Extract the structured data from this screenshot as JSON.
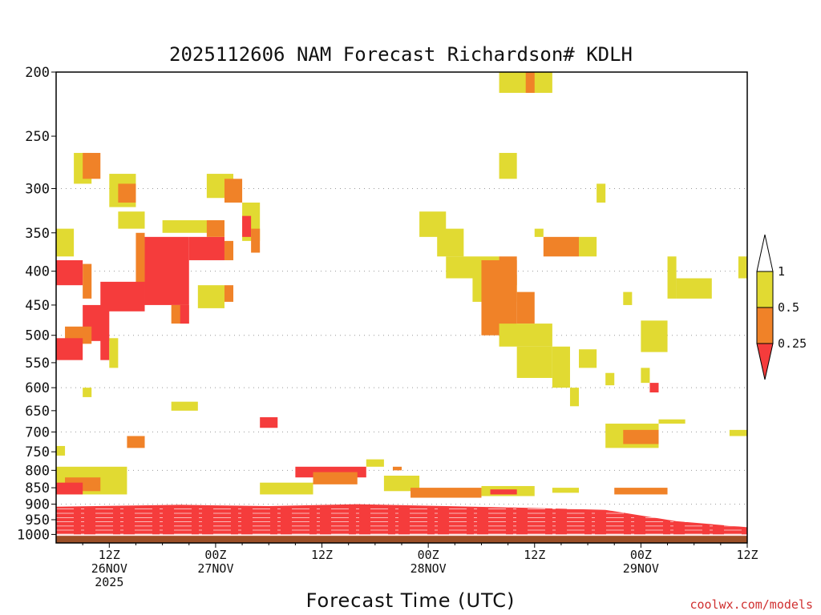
{
  "chart_data": {
    "type": "heatmap",
    "title": "2025112606 NAM Forecast Richardson# KDLH",
    "xlabel": "Forecast Time (UTC)",
    "ylabel": "Pressure (hPa)",
    "ylim": [
      1030,
      200
    ],
    "xlim_hours": [
      6,
      84
    ],
    "y_ticks": [
      200,
      250,
      300,
      350,
      400,
      450,
      500,
      550,
      600,
      650,
      700,
      750,
      800,
      850,
      900,
      950,
      1000
    ],
    "x_ticks": [
      {
        "hour": 12,
        "lines": [
          "12Z",
          "26NOV",
          "2025"
        ]
      },
      {
        "hour": 24,
        "lines": [
          "00Z",
          "27NOV"
        ]
      },
      {
        "hour": 36,
        "lines": [
          "12Z"
        ]
      },
      {
        "hour": 48,
        "lines": [
          "00Z",
          "28NOV"
        ]
      },
      {
        "hour": 60,
        "lines": [
          "12Z"
        ]
      },
      {
        "hour": 72,
        "lines": [
          "00Z",
          "29NOV"
        ]
      },
      {
        "hour": 84,
        "lines": [
          "12Z"
        ]
      }
    ],
    "legend": {
      "labels": [
        "1",
        "0.5",
        "0.25"
      ],
      "bins": [
        {
          "range": "0.5-1",
          "color": "#e1da32"
        },
        {
          "range": "0.25-0.5",
          "color": "#f08228"
        },
        {
          "range": "<0.25",
          "color": "#f53c3c"
        }
      ]
    },
    "colors": {
      "high": "#e1da32",
      "mid": "#f08228",
      "low": "#f53c3c",
      "ground": "#9b4f27"
    },
    "ground_level_hpa": 1005,
    "surface_layer_top_hpa": [
      {
        "hour": 6,
        "p": 908
      },
      {
        "hour": 20,
        "p": 902
      },
      {
        "hour": 30,
        "p": 906
      },
      {
        "hour": 40,
        "p": 900
      },
      {
        "hour": 50,
        "p": 906
      },
      {
        "hour": 60,
        "p": 912
      },
      {
        "hour": 68,
        "p": 918
      },
      {
        "hour": 76,
        "p": 955
      },
      {
        "hour": 84,
        "p": 975
      },
      {
        "hour": 90,
        "p": 935
      }
    ],
    "regions": [
      {
        "h0": 8,
        "h1": 10,
        "p0": 265,
        "p1": 295,
        "cat": "high"
      },
      {
        "h0": 9,
        "h1": 11,
        "p0": 265,
        "p1": 290,
        "cat": "mid"
      },
      {
        "h0": 12,
        "h1": 15,
        "p0": 285,
        "p1": 320,
        "cat": "high"
      },
      {
        "h0": 13,
        "h1": 15,
        "p0": 295,
        "p1": 315,
        "cat": "mid"
      },
      {
        "h0": 13,
        "h1": 16,
        "p0": 325,
        "p1": 345,
        "cat": "high"
      },
      {
        "h0": 16,
        "h1": 21,
        "p0": 355,
        "p1": 450,
        "cat": "low"
      },
      {
        "h0": 21,
        "h1": 25,
        "p0": 355,
        "p1": 385,
        "cat": "low"
      },
      {
        "h0": 25,
        "h1": 26,
        "p0": 360,
        "p1": 385,
        "cat": "mid"
      },
      {
        "h0": 15,
        "h1": 16,
        "p0": 350,
        "p1": 420,
        "cat": "mid"
      },
      {
        "h0": 11,
        "h1": 16,
        "p0": 415,
        "p1": 460,
        "cat": "low"
      },
      {
        "h0": 9,
        "h1": 12,
        "p0": 450,
        "p1": 510,
        "cat": "low"
      },
      {
        "h0": 7,
        "h1": 10,
        "p0": 485,
        "p1": 515,
        "cat": "mid"
      },
      {
        "h0": 6,
        "h1": 9,
        "p0": 505,
        "p1": 545,
        "cat": "low"
      },
      {
        "h0": 6,
        "h1": 9,
        "p0": 385,
        "p1": 420,
        "cat": "low"
      },
      {
        "h0": 9,
        "h1": 10,
        "p0": 390,
        "p1": 440,
        "cat": "mid"
      },
      {
        "h0": 11,
        "h1": 12,
        "p0": 505,
        "p1": 545,
        "cat": "low"
      },
      {
        "h0": 19,
        "h1": 21,
        "p0": 450,
        "p1": 480,
        "cat": "mid"
      },
      {
        "h0": 20,
        "h1": 21,
        "p0": 450,
        "p1": 480,
        "cat": "low"
      },
      {
        "h0": 18,
        "h1": 25,
        "p0": 335,
        "p1": 350,
        "cat": "high"
      },
      {
        "h0": 23,
        "h1": 25,
        "p0": 335,
        "p1": 355,
        "cat": "mid"
      },
      {
        "h0": 23,
        "h1": 26,
        "p0": 285,
        "p1": 310,
        "cat": "high"
      },
      {
        "h0": 25,
        "h1": 27,
        "p0": 290,
        "p1": 315,
        "cat": "mid"
      },
      {
        "h0": 27,
        "h1": 29,
        "p0": 315,
        "p1": 360,
        "cat": "high"
      },
      {
        "h0": 27,
        "h1": 28,
        "p0": 330,
        "p1": 355,
        "cat": "low"
      },
      {
        "h0": 28,
        "h1": 29,
        "p0": 345,
        "p1": 375,
        "cat": "mid"
      },
      {
        "h0": 22,
        "h1": 25,
        "p0": 420,
        "p1": 455,
        "cat": "high"
      },
      {
        "h0": 25,
        "h1": 26,
        "p0": 420,
        "p1": 445,
        "cat": "mid"
      },
      {
        "h0": 6,
        "h1": 8,
        "p0": 345,
        "p1": 380,
        "cat": "high"
      },
      {
        "h0": 12,
        "h1": 13,
        "p0": 505,
        "p1": 560,
        "cat": "high"
      },
      {
        "h0": 9,
        "h1": 10,
        "p0": 600,
        "p1": 620,
        "cat": "high"
      },
      {
        "h0": 19,
        "h1": 22,
        "p0": 630,
        "p1": 650,
        "cat": "high"
      },
      {
        "h0": 29,
        "h1": 31,
        "p0": 665,
        "p1": 690,
        "cat": "low"
      },
      {
        "h0": 14,
        "h1": 16,
        "p0": 710,
        "p1": 740,
        "cat": "mid"
      },
      {
        "h0": 6,
        "h1": 7,
        "p0": 735,
        "p1": 760,
        "cat": "high"
      },
      {
        "h0": 6,
        "h1": 14,
        "p0": 790,
        "p1": 870,
        "cat": "high"
      },
      {
        "h0": 7,
        "h1": 11,
        "p0": 820,
        "p1": 860,
        "cat": "mid"
      },
      {
        "h0": 6,
        "h1": 9,
        "p0": 835,
        "p1": 870,
        "cat": "low"
      },
      {
        "h0": 33,
        "h1": 41,
        "p0": 790,
        "p1": 820,
        "cat": "low"
      },
      {
        "h0": 35,
        "h1": 40,
        "p0": 805,
        "p1": 840,
        "cat": "mid"
      },
      {
        "h0": 29,
        "h1": 35,
        "p0": 835,
        "p1": 870,
        "cat": "high"
      },
      {
        "h0": 41,
        "h1": 43,
        "p0": 770,
        "p1": 790,
        "cat": "high"
      },
      {
        "h0": 43,
        "h1": 47,
        "p0": 815,
        "p1": 860,
        "cat": "high"
      },
      {
        "h0": 46,
        "h1": 54,
        "p0": 850,
        "p1": 880,
        "cat": "mid"
      },
      {
        "h0": 54,
        "h1": 60,
        "p0": 845,
        "p1": 875,
        "cat": "high"
      },
      {
        "h0": 55,
        "h1": 58,
        "p0": 855,
        "p1": 870,
        "cat": "low"
      },
      {
        "h0": 62,
        "h1": 65,
        "p0": 850,
        "p1": 865,
        "cat": "high"
      },
      {
        "h0": 69,
        "h1": 75,
        "p0": 850,
        "p1": 870,
        "cat": "mid"
      },
      {
        "h0": 85,
        "h1": 89,
        "p0": 880,
        "p1": 900,
        "cat": "high"
      },
      {
        "h0": 89,
        "h1": 90,
        "p0": 860,
        "p1": 905,
        "cat": "low"
      },
      {
        "h0": 56,
        "h1": 62,
        "p0": 200,
        "p1": 215,
        "cat": "high"
      },
      {
        "h0": 59,
        "h1": 60,
        "p0": 200,
        "p1": 215,
        "cat": "mid"
      },
      {
        "h0": 56,
        "h1": 58,
        "p0": 265,
        "p1": 290,
        "cat": "high"
      },
      {
        "h0": 67,
        "h1": 68,
        "p0": 295,
        "p1": 315,
        "cat": "high"
      },
      {
        "h0": 47,
        "h1": 50,
        "p0": 325,
        "p1": 355,
        "cat": "high"
      },
      {
        "h0": 49,
        "h1": 52,
        "p0": 345,
        "p1": 380,
        "cat": "high"
      },
      {
        "h0": 50,
        "h1": 56,
        "p0": 380,
        "p1": 410,
        "cat": "high"
      },
      {
        "h0": 53,
        "h1": 58,
        "p0": 405,
        "p1": 445,
        "cat": "high"
      },
      {
        "h0": 54,
        "h1": 58,
        "p0": 385,
        "p1": 500,
        "cat": "mid"
      },
      {
        "h0": 56,
        "h1": 58,
        "p0": 380,
        "p1": 420,
        "cat": "mid"
      },
      {
        "h0": 58,
        "h1": 60,
        "p0": 430,
        "p1": 480,
        "cat": "mid"
      },
      {
        "h0": 56,
        "h1": 62,
        "p0": 480,
        "p1": 520,
        "cat": "high"
      },
      {
        "h0": 58,
        "h1": 62,
        "p0": 520,
        "p1": 580,
        "cat": "high"
      },
      {
        "h0": 62,
        "h1": 64,
        "p0": 520,
        "p1": 600,
        "cat": "high"
      },
      {
        "h0": 64,
        "h1": 65,
        "p0": 600,
        "p1": 640,
        "cat": "high"
      },
      {
        "h0": 60,
        "h1": 61,
        "p0": 345,
        "p1": 355,
        "cat": "high"
      },
      {
        "h0": 61,
        "h1": 65,
        "p0": 355,
        "p1": 380,
        "cat": "mid"
      },
      {
        "h0": 65,
        "h1": 67,
        "p0": 355,
        "p1": 380,
        "cat": "high"
      },
      {
        "h0": 65,
        "h1": 67,
        "p0": 525,
        "p1": 560,
        "cat": "high"
      },
      {
        "h0": 68,
        "h1": 69,
        "p0": 570,
        "p1": 595,
        "cat": "high"
      },
      {
        "h0": 72,
        "h1": 75,
        "p0": 475,
        "p1": 530,
        "cat": "high"
      },
      {
        "h0": 75,
        "h1": 76,
        "p0": 380,
        "p1": 440,
        "cat": "high"
      },
      {
        "h0": 76,
        "h1": 80,
        "p0": 410,
        "p1": 440,
        "cat": "high"
      },
      {
        "h0": 70,
        "h1": 71,
        "p0": 430,
        "p1": 450,
        "cat": "high"
      },
      {
        "h0": 72,
        "h1": 73,
        "p0": 560,
        "p1": 590,
        "cat": "high"
      },
      {
        "h0": 73,
        "h1": 74,
        "p0": 590,
        "p1": 610,
        "cat": "low"
      },
      {
        "h0": 68,
        "h1": 74,
        "p0": 680,
        "p1": 740,
        "cat": "high"
      },
      {
        "h0": 70,
        "h1": 74,
        "p0": 695,
        "p1": 730,
        "cat": "mid"
      },
      {
        "h0": 74,
        "h1": 77,
        "p0": 670,
        "p1": 680,
        "cat": "high"
      },
      {
        "h0": 82,
        "h1": 88,
        "p0": 695,
        "p1": 710,
        "cat": "high"
      },
      {
        "h0": 86,
        "h1": 90,
        "p0": 730,
        "p1": 745,
        "cat": "mid"
      },
      {
        "h0": 84,
        "h1": 85,
        "p0": 340,
        "p1": 355,
        "cat": "high"
      },
      {
        "h0": 85,
        "h1": 86,
        "p0": 325,
        "p1": 345,
        "cat": "high"
      },
      {
        "h0": 83,
        "h1": 84,
        "p0": 380,
        "p1": 410,
        "cat": "high"
      },
      {
        "h0": 87,
        "h1": 89,
        "p0": 355,
        "p1": 380,
        "cat": "mid"
      },
      {
        "h0": 86,
        "h1": 90,
        "p0": 420,
        "p1": 490,
        "cat": "high"
      },
      {
        "h0": 87,
        "h1": 90,
        "p0": 430,
        "p1": 500,
        "cat": "mid"
      },
      {
        "h0": 89,
        "h1": 90,
        "p0": 385,
        "p1": 420,
        "cat": "low"
      },
      {
        "h0": 88,
        "h1": 90,
        "p0": 505,
        "p1": 540,
        "cat": "high"
      },
      {
        "h0": 44,
        "h1": 45,
        "p0": 790,
        "p1": 800,
        "cat": "mid"
      }
    ]
  },
  "credit": "coolwx.com/models"
}
